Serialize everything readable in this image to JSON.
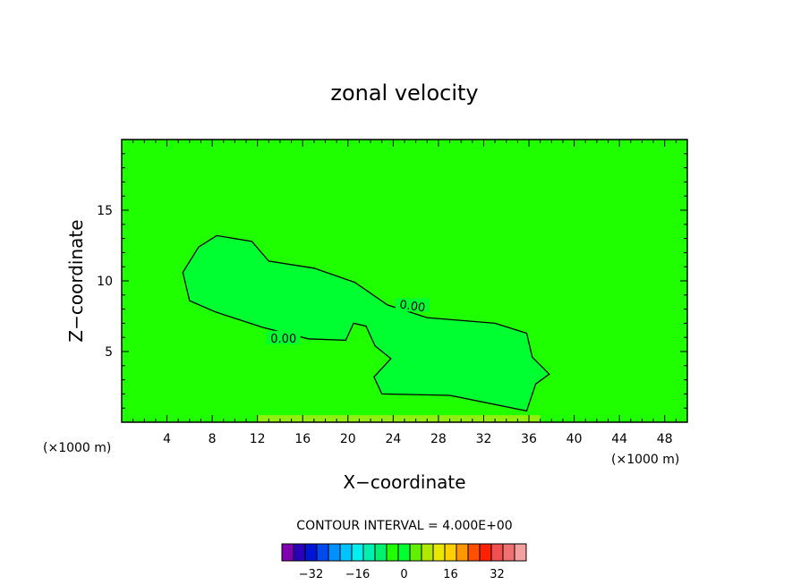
{
  "chart_data": {
    "type": "heatmap",
    "title": "zonal velocity",
    "xlabel": "X−coordinate",
    "ylabel": "Z−coordinate",
    "x_unit": "(×1000 m)",
    "x_unit_right": "(×1000 m)",
    "xlim": [
      0,
      50
    ],
    "ylim": [
      0,
      20
    ],
    "x_ticks": [
      4,
      8,
      12,
      16,
      20,
      24,
      28,
      32,
      36,
      40,
      44,
      48
    ],
    "y_ticks": [
      5,
      10,
      15
    ],
    "x_tick_labels": [
      "4",
      "8",
      "12",
      "16",
      "20",
      "24",
      "28",
      "32",
      "36",
      "40",
      "44",
      "48"
    ],
    "y_tick_labels": [
      "5",
      "10",
      "15"
    ],
    "background_color": "#20ff00",
    "field_colors": {
      "near_zero_negative": "#20ff00",
      "near_zero_positive": "#00ff30",
      "surface_layer": "#90ee10"
    },
    "contour_interval_text": "CONTOUR INTERVAL = 4.000E+00",
    "contour_labels": [
      {
        "text": "0.00",
        "x": 25.7,
        "z": 8.2
      },
      {
        "text": "0.00",
        "x": 14.3,
        "z": 5.9
      }
    ],
    "zero_contour": [
      [
        6,
        8.6
      ],
      [
        5.4,
        10.6
      ],
      [
        6.8,
        12.4
      ],
      [
        8.4,
        13.2
      ],
      [
        11.5,
        12.8
      ],
      [
        13,
        11.4
      ],
      [
        17,
        10.9
      ],
      [
        20.6,
        9.9
      ],
      [
        23.5,
        8.3
      ],
      [
        27,
        7.4
      ],
      [
        33,
        7.0
      ],
      [
        35.8,
        6.3
      ],
      [
        36.3,
        4.6
      ],
      [
        37.8,
        3.4
      ],
      [
        36.6,
        2.7
      ],
      [
        35.8,
        0.8
      ],
      [
        29,
        1.9
      ],
      [
        23,
        2.0
      ],
      [
        22.3,
        3.2
      ],
      [
        23.8,
        4.5
      ],
      [
        22.4,
        5.4
      ],
      [
        21.6,
        6.8
      ],
      [
        20.5,
        7.0
      ],
      [
        19.8,
        5.8
      ],
      [
        16.5,
        5.9
      ],
      [
        12.5,
        6.7
      ],
      [
        8.3,
        7.8
      ]
    ],
    "colorbar": {
      "colors": [
        "#7f00b0",
        "#2a00b8",
        "#0014d8",
        "#0048f0",
        "#0090ff",
        "#00c4ff",
        "#00f0f0",
        "#00f0b0",
        "#00f070",
        "#20ff00",
        "#00ff30",
        "#60f000",
        "#b0e800",
        "#e8e800",
        "#ffd000",
        "#ff9800",
        "#ff5000",
        "#ff2000",
        "#f05050",
        "#f07070",
        "#f4a0a0"
      ],
      "labels": [
        "−32",
        "−16",
        "0",
        "16",
        "32"
      ],
      "label_values": [
        -32,
        -16,
        0,
        16,
        32
      ]
    }
  }
}
